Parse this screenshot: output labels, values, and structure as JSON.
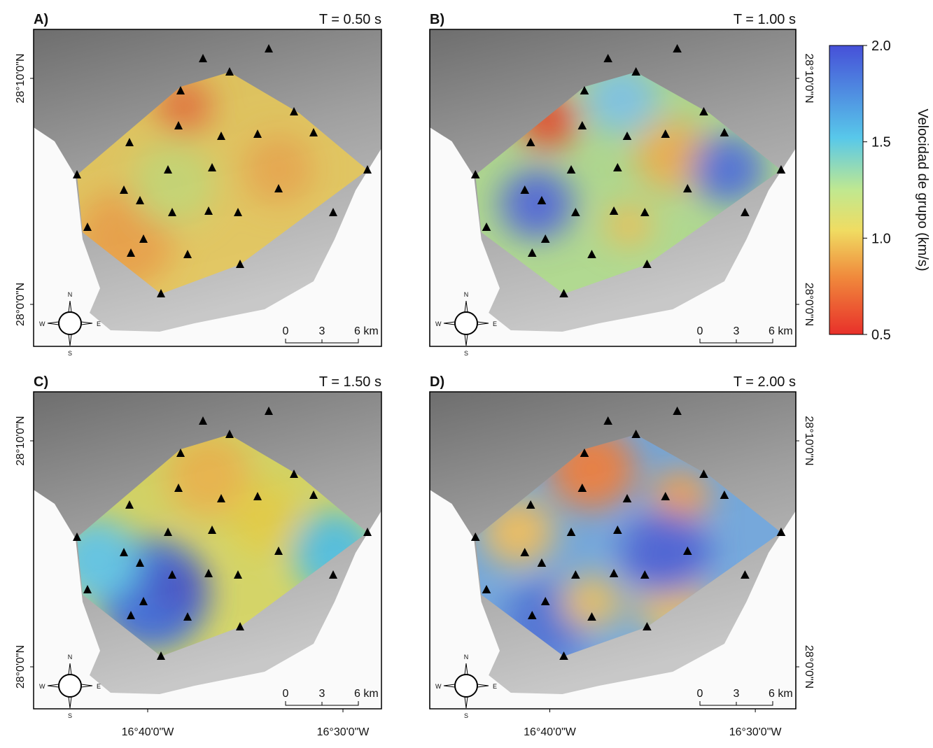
{
  "panels": [
    {
      "label": "A)",
      "period": "T = 0.50 s"
    },
    {
      "label": "B)",
      "period": "T = 1.00 s"
    },
    {
      "label": "C)",
      "period": "T = 1.50 s"
    },
    {
      "label": "D)",
      "period": "T = 2.00 s"
    }
  ],
  "scale_bar": [
    "0",
    "3",
    "6 km"
  ],
  "compass": {
    "n": "N",
    "e": "E",
    "s": "S",
    "w": "W"
  },
  "latitude_labels": [
    "28°10'0\"N",
    "28°0'0\"N"
  ],
  "longitude_labels": [
    "16°40'0\"W",
    "16°30'0\"W"
  ],
  "colorbar": {
    "title": "Velocidad de grupo (km/s)",
    "range": [
      0.5,
      2
    ],
    "ticks": [
      {
        "value": 2,
        "label": "2.0"
      },
      {
        "value": 1.5,
        "label": "1.5"
      },
      {
        "value": 1,
        "label": "1.0"
      },
      {
        "value": 0.5,
        "label": "0.5"
      }
    ]
  }
}
